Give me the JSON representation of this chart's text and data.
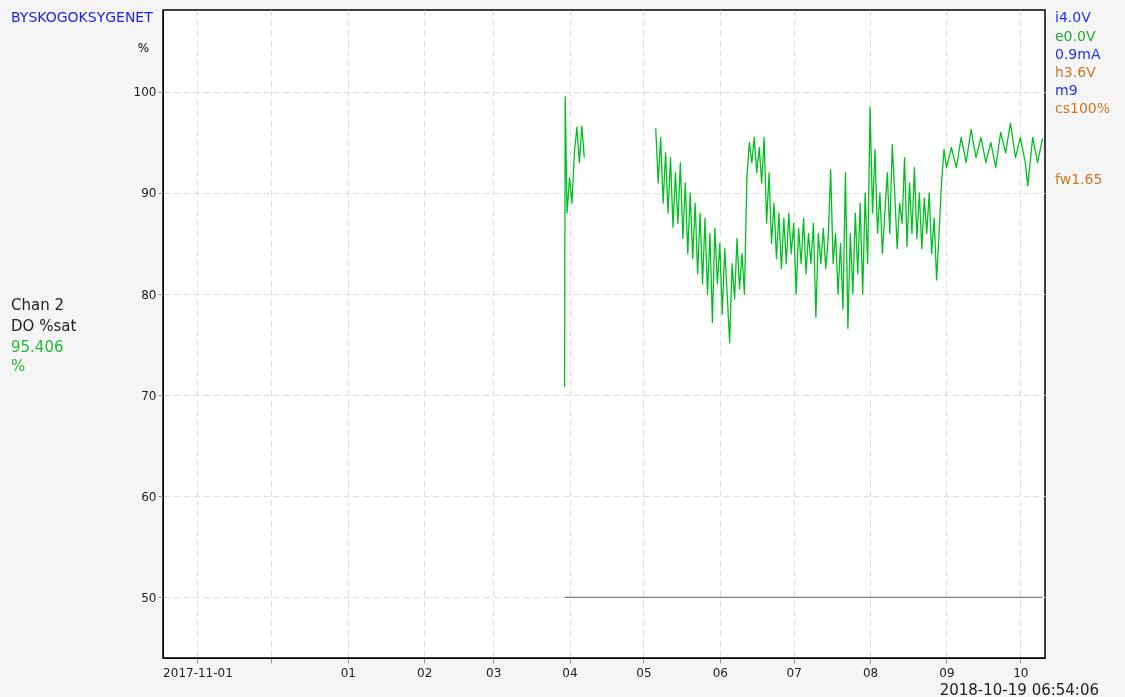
{
  "chart_data": {
    "type": "line",
    "title": "BYSKOGOKSYGENET",
    "ylabel": "%",
    "xlim": [
      "2017-10-18",
      "2018-10-11"
    ],
    "xticks": [
      {
        "value": "2017-11-01",
        "label": "2017-11-01"
      },
      {
        "value": "2017-12-01",
        "label": null
      },
      {
        "value": "2018-01-01",
        "label": "01"
      },
      {
        "value": "2018-02-01",
        "label": "02"
      },
      {
        "value": "2018-03-01",
        "label": "03"
      },
      {
        "value": "2018-04-01",
        "label": "04"
      },
      {
        "value": "2018-05-01",
        "label": "05"
      },
      {
        "value": "2018-06-01",
        "label": "06"
      },
      {
        "value": "2018-07-01",
        "label": "07"
      },
      {
        "value": "2018-08-01",
        "label": "08"
      },
      {
        "value": "2018-09-01",
        "label": "09"
      },
      {
        "value": "2018-10-01",
        "label": "10"
      }
    ],
    "ylim": [
      44,
      108.1
    ],
    "yticks": [
      50,
      60,
      70,
      80,
      90,
      100
    ],
    "grid": true,
    "annotations": [
      "Chan 2",
      "DO %sat",
      "95.406",
      "%",
      "i4.0V",
      "e0.0V",
      "0.9mA",
      "h3.6V",
      "m9",
      "cs100%",
      "fw1.65",
      "2018-10-19 06:54:06"
    ],
    "series": [
      {
        "color": "#00c020",
        "x": [
          "2018-03-30T00:00",
          "2018-03-30T06:00",
          "2018-03-31",
          "2018-04-01",
          "2018-04-02",
          "2018-04-03",
          "2018-04-04",
          "2018-04-05",
          "2018-04-06",
          "2018-04-07",
          "2018-04-20",
          "2018-05-06",
          "2018-05-07",
          "2018-05-08",
          "2018-05-09",
          "2018-05-10",
          "2018-05-11",
          "2018-05-12",
          "2018-05-13",
          "2018-05-14",
          "2018-05-15",
          "2018-05-16",
          "2018-05-17",
          "2018-05-18",
          "2018-05-19",
          "2018-05-20",
          "2018-05-21",
          "2018-05-22",
          "2018-05-23",
          "2018-05-24",
          "2018-05-25",
          "2018-05-26",
          "2018-05-27",
          "2018-05-28",
          "2018-05-29",
          "2018-05-30",
          "2018-05-31",
          "2018-06-01",
          "2018-06-02",
          "2018-06-03",
          "2018-06-04",
          "2018-06-05",
          "2018-06-06",
          "2018-06-07",
          "2018-06-08",
          "2018-06-09",
          "2018-06-10",
          "2018-06-11",
          "2018-06-12",
          "2018-06-13",
          "2018-06-14",
          "2018-06-15",
          "2018-06-16",
          "2018-06-17",
          "2018-06-18",
          "2018-06-19",
          "2018-06-20",
          "2018-06-21",
          "2018-06-22",
          "2018-06-23",
          "2018-06-24",
          "2018-06-25",
          "2018-06-26",
          "2018-06-27",
          "2018-06-28",
          "2018-06-29",
          "2018-06-30",
          "2018-07-01",
          "2018-07-02",
          "2018-07-03",
          "2018-07-04",
          "2018-07-05",
          "2018-07-06",
          "2018-07-07",
          "2018-07-08",
          "2018-07-09",
          "2018-07-10",
          "2018-07-11",
          "2018-07-12",
          "2018-07-13",
          "2018-07-14",
          "2018-07-15",
          "2018-07-16",
          "2018-07-17",
          "2018-07-18",
          "2018-07-19",
          "2018-07-20",
          "2018-07-21",
          "2018-07-22",
          "2018-07-23",
          "2018-07-24",
          "2018-07-25",
          "2018-07-26",
          "2018-07-27",
          "2018-07-28",
          "2018-07-29",
          "2018-07-30",
          "2018-07-31",
          "2018-08-01",
          "2018-08-02",
          "2018-08-03",
          "2018-08-04",
          "2018-08-05",
          "2018-08-06",
          "2018-08-07",
          "2018-08-08",
          "2018-08-09",
          "2018-08-10",
          "2018-08-11",
          "2018-08-12",
          "2018-08-13",
          "2018-08-14",
          "2018-08-15",
          "2018-08-16",
          "2018-08-17",
          "2018-08-18",
          "2018-08-19",
          "2018-08-20",
          "2018-08-21",
          "2018-08-22",
          "2018-08-23",
          "2018-08-24",
          "2018-08-25",
          "2018-08-26",
          "2018-08-27",
          "2018-08-28",
          "2018-08-29",
          "2018-08-30",
          "2018-08-31",
          "2018-09-01",
          "2018-09-03",
          "2018-09-05",
          "2018-09-07",
          "2018-09-09",
          "2018-09-11",
          "2018-09-13",
          "2018-09-15",
          "2018-09-17",
          "2018-09-19",
          "2018-09-21",
          "2018-09-23",
          "2018-09-25",
          "2018-09-27",
          "2018-09-29",
          "2018-10-01",
          "2018-10-03",
          "2018-10-04",
          "2018-10-06",
          "2018-10-08",
          "2018-10-10"
        ],
        "values": [
          70.8,
          99.5,
          88,
          91.5,
          89,
          94,
          96.5,
          93,
          96.6,
          93.5,
          null,
          96.4,
          91,
          95.5,
          89,
          94,
          88,
          93.5,
          86.6,
          92,
          87,
          93,
          85.5,
          91,
          84,
          90,
          83.5,
          89,
          82,
          88,
          81,
          87.5,
          80,
          86,
          77.2,
          86.5,
          81,
          85,
          78,
          84.5,
          80,
          75.2,
          83,
          79.5,
          85.5,
          80.5,
          84,
          80,
          91.5,
          95,
          93,
          95.5,
          92,
          94.5,
          91,
          95.5,
          87,
          92,
          85,
          89,
          83.5,
          88,
          82.5,
          87.5,
          83,
          88,
          84,
          87,
          80,
          86.5,
          83,
          87.5,
          82,
          86,
          83,
          87,
          77.7,
          86,
          83,
          86.5,
          82.5,
          85.5,
          92.3,
          83,
          86,
          80,
          85,
          78.5,
          92,
          76.6,
          86,
          80,
          88,
          82,
          89,
          80,
          90,
          83,
          98.5,
          88,
          94.3,
          86,
          90,
          84,
          88,
          92,
          86,
          94.8,
          90,
          84.5,
          89,
          87,
          93.5,
          84.7,
          91,
          86,
          92.5,
          85.5,
          90,
          84.5,
          89.5,
          86,
          90,
          84,
          87.5,
          81.4,
          86,
          91,
          94.3,
          92.5,
          94.5,
          92.5,
          95.5,
          93,
          96.3,
          93.5,
          95.5,
          93,
          95,
          92.5,
          96,
          94,
          96.9,
          93.5,
          95.5,
          93,
          90.7,
          95.5,
          93,
          95.4
        ]
      },
      {
        "color": "#808080",
        "x": [
          "2018-03-30",
          "2018-10-10"
        ],
        "values": [
          50,
          50
        ]
      }
    ]
  }
}
